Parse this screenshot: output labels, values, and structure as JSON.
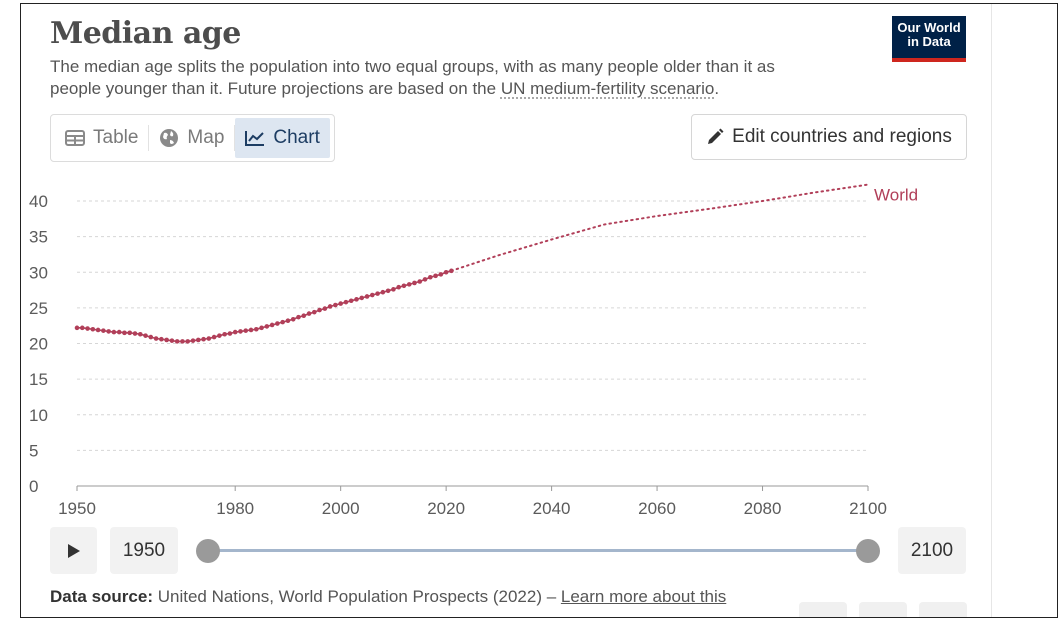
{
  "header": {
    "title": "Median age",
    "subtitle_before": "The median age splits the population into two equal groups, with as many people older than it as people younger than it. Future projections are based on the ",
    "subtitle_link": "UN medium-fertility scenario",
    "subtitle_after": ".",
    "logo_line1": "Our World",
    "logo_line2": "in Data"
  },
  "tabs": [
    {
      "label": "Table",
      "icon": "table-icon",
      "active": false
    },
    {
      "label": "Map",
      "icon": "globe-icon",
      "active": false
    },
    {
      "label": "Chart",
      "icon": "line-chart-icon",
      "active": true
    }
  ],
  "edit_button": {
    "label": "Edit countries and regions",
    "icon": "pencil-icon"
  },
  "timeline": {
    "start_year": "1950",
    "end_year": "2100",
    "play_icon": "play-icon"
  },
  "footer": {
    "source_label": "Data source:",
    "source_text": " United Nations, World Population Prospects (2022) – ",
    "learn_more": "Learn more about this"
  },
  "colors": {
    "series": "#b13f59",
    "grid": "#d6d6d6",
    "axis_text": "#5b5b5b",
    "logo_bg": "#002147",
    "logo_bar": "#ce261e",
    "active_tab": "#dde6f1"
  },
  "chart_data": {
    "type": "line",
    "title": "Median age",
    "xlabel": "",
    "ylabel": "",
    "xlim": [
      1950,
      2100
    ],
    "ylim": [
      0,
      42
    ],
    "x_ticks": [
      1950,
      1980,
      2000,
      2020,
      2040,
      2060,
      2080,
      2100
    ],
    "y_ticks": [
      0,
      5,
      10,
      15,
      20,
      25,
      30,
      35,
      40
    ],
    "grid": true,
    "series": [
      {
        "name": "World",
        "style": "dots-historical",
        "x": [
          1950,
          1951,
          1952,
          1953,
          1954,
          1955,
          1956,
          1957,
          1958,
          1959,
          1960,
          1961,
          1962,
          1963,
          1964,
          1965,
          1966,
          1967,
          1968,
          1969,
          1970,
          1971,
          1972,
          1973,
          1974,
          1975,
          1976,
          1977,
          1978,
          1979,
          1980,
          1981,
          1982,
          1983,
          1984,
          1985,
          1986,
          1987,
          1988,
          1989,
          1990,
          1991,
          1992,
          1993,
          1994,
          1995,
          1996,
          1997,
          1998,
          1999,
          2000,
          2001,
          2002,
          2003,
          2004,
          2005,
          2006,
          2007,
          2008,
          2009,
          2010,
          2011,
          2012,
          2013,
          2014,
          2015,
          2016,
          2017,
          2018,
          2019,
          2020,
          2021
        ],
        "values": [
          22.2,
          22.2,
          22.1,
          22.0,
          21.9,
          21.8,
          21.7,
          21.6,
          21.6,
          21.5,
          21.5,
          21.4,
          21.3,
          21.1,
          20.9,
          20.7,
          20.6,
          20.5,
          20.4,
          20.3,
          20.3,
          20.3,
          20.4,
          20.5,
          20.6,
          20.7,
          20.9,
          21.1,
          21.3,
          21.4,
          21.6,
          21.7,
          21.8,
          21.9,
          22.0,
          22.2,
          22.4,
          22.6,
          22.8,
          23.0,
          23.2,
          23.4,
          23.7,
          23.9,
          24.2,
          24.4,
          24.7,
          24.9,
          25.2,
          25.4,
          25.6,
          25.8,
          26.0,
          26.2,
          26.4,
          26.6,
          26.8,
          27.0,
          27.2,
          27.4,
          27.6,
          27.9,
          28.1,
          28.3,
          28.5,
          28.7,
          29.0,
          29.3,
          29.5,
          29.7,
          30.0,
          30.2
        ]
      },
      {
        "name": "World",
        "style": "dotted-projection",
        "x": [
          2021,
          2030,
          2040,
          2050,
          2060,
          2070,
          2080,
          2090,
          2100
        ],
        "values": [
          30.2,
          32.4,
          34.6,
          36.7,
          37.9,
          38.9,
          40.0,
          41.2,
          42.3
        ]
      }
    ],
    "series_label": "World"
  }
}
